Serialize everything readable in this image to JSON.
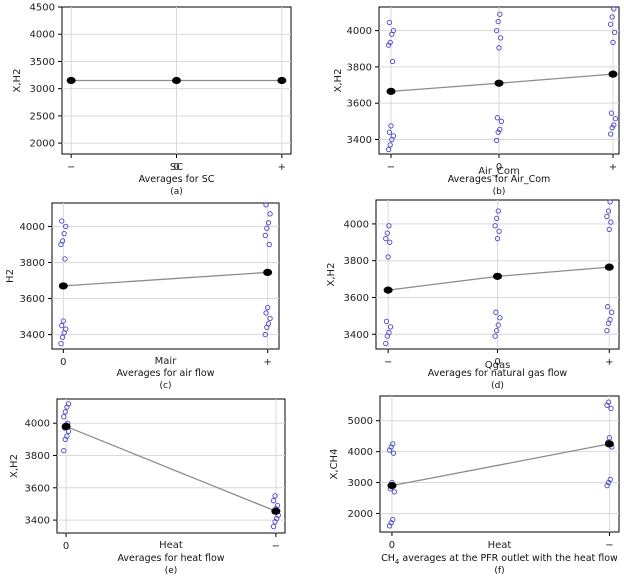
{
  "colors": {
    "observation": "#4848c8",
    "mean": "#000000",
    "line": "#8c8c8c"
  },
  "chart_data": [
    {
      "id": "a",
      "type": "scatter",
      "ylabel": "X,H2",
      "xlabel": "SC",
      "caption": "Averages for SC",
      "sublabel": "(a)",
      "ylim": [
        1800,
        4500
      ],
      "yticks": [
        2000,
        2500,
        3000,
        3500,
        4000,
        4500
      ],
      "categories": [
        "−",
        "0",
        "+"
      ],
      "means": [
        3150,
        3150,
        3150
      ],
      "observations": [
        [],
        [],
        []
      ]
    },
    {
      "id": "b",
      "type": "scatter",
      "ylabel": "X,H2",
      "xlabel": "Air_Com",
      "caption": "Averages for Air_Com",
      "sublabel": "(b)",
      "ylim": [
        3320,
        4130
      ],
      "yticks": [
        3400,
        3600,
        3800,
        4000
      ],
      "categories": [
        "−",
        "0",
        "+"
      ],
      "means": [
        3665,
        3710,
        3760
      ],
      "observations": [
        [
          3345,
          3370,
          3400,
          3420,
          3440,
          3475,
          3830,
          3920,
          3935,
          3980,
          4000,
          4045
        ],
        [
          3395,
          3440,
          3455,
          3500,
          3520,
          3905,
          3960,
          4000,
          4050,
          4090
        ],
        [
          3430,
          3465,
          3480,
          3515,
          3545,
          3935,
          3990,
          4035,
          4075,
          4120
        ]
      ]
    },
    {
      "id": "c",
      "type": "scatter",
      "ylabel": "H2",
      "xlabel": "Mair",
      "caption": "Averages for air flow",
      "sublabel": "(c)",
      "ylim": [
        3320,
        4130
      ],
      "yticks": [
        3400,
        3600,
        3800,
        4000
      ],
      "categories": [
        "0",
        "+"
      ],
      "means": [
        3670,
        3745
      ],
      "observations": [
        [
          3350,
          3385,
          3410,
          3430,
          3450,
          3475,
          3820,
          3900,
          3920,
          3960,
          4000,
          4030
        ],
        [
          3400,
          3440,
          3460,
          3490,
          3520,
          3550,
          3900,
          3950,
          3990,
          4020,
          4070,
          4120
        ]
      ]
    },
    {
      "id": "d",
      "type": "scatter",
      "ylabel": "X,H2",
      "xlabel": "Qgas",
      "caption": "Averages for natural gas flow",
      "sublabel": "(d)",
      "ylim": [
        3320,
        4130
      ],
      "yticks": [
        3400,
        3600,
        3800,
        4000
      ],
      "categories": [
        "−",
        "0",
        "+"
      ],
      "means": [
        3640,
        3715,
        3765
      ],
      "observations": [
        [
          3350,
          3390,
          3410,
          3440,
          3470,
          3820,
          3900,
          3920,
          3950,
          3990
        ],
        [
          3390,
          3420,
          3450,
          3490,
          3520,
          3920,
          3960,
          3990,
          4030,
          4070
        ],
        [
          3420,
          3460,
          3480,
          3520,
          3550,
          3970,
          4010,
          4040,
          4070,
          4120
        ]
      ]
    },
    {
      "id": "e",
      "type": "scatter",
      "ylabel": "X,H2",
      "xlabel": "Heat",
      "caption": "Averages for heat flow",
      "sublabel": "(e)",
      "ylim": [
        3320,
        4150
      ],
      "yticks": [
        3400,
        3600,
        3800,
        4000
      ],
      "categories": [
        "0",
        "−"
      ],
      "means": [
        3980,
        3455
      ],
      "observations": [
        [
          3830,
          3900,
          3920,
          3950,
          3970,
          3990,
          4000,
          4040,
          4070,
          4100,
          4120
        ],
        [
          3360,
          3390,
          3410,
          3430,
          3450,
          3470,
          3490,
          3520,
          3550
        ]
      ]
    },
    {
      "id": "f",
      "type": "scatter",
      "ylabel": "X,CH4",
      "xlabel": "Heat",
      "caption": "averages at the PFR outlet with the heat flow",
      "caption_prefix": "CH",
      "caption_sub": "4",
      "sublabel": "(f)",
      "ylim": [
        1400,
        5800
      ],
      "yticks": [
        2000,
        3000,
        4000,
        5000
      ],
      "categories": [
        "0",
        "−"
      ],
      "means": [
        2900,
        4250
      ],
      "observations": [
        [
          1600,
          1700,
          1800,
          2700,
          2800,
          3000,
          3950,
          4050,
          4150,
          4250
        ],
        [
          2900,
          3000,
          3100,
          4150,
          4300,
          4450,
          5400,
          5500,
          5600
        ]
      ]
    }
  ]
}
